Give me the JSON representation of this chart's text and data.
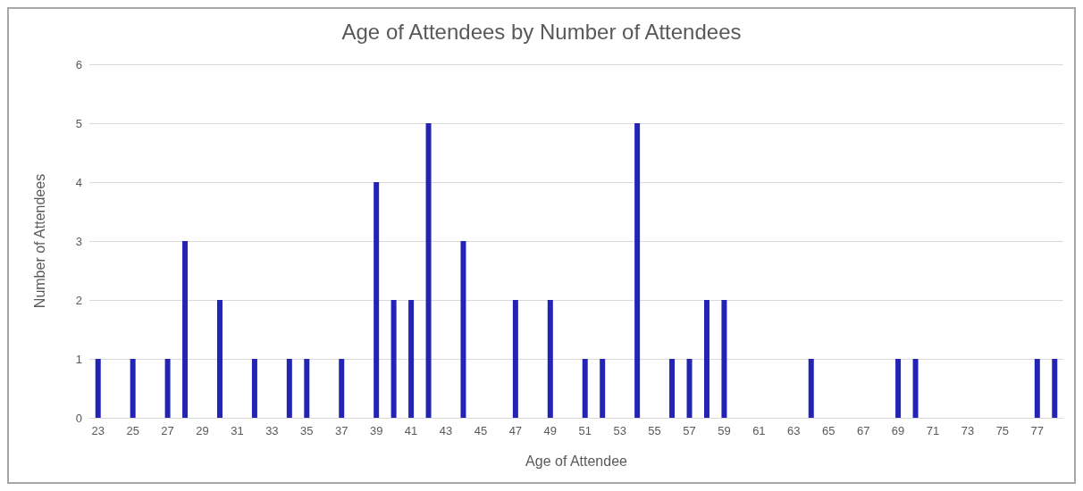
{
  "chart_data": {
    "type": "bar",
    "title": "Age of Attendees by Number of Attendees",
    "xlabel": "Age of Attendee",
    "ylabel": "Number of Attendees",
    "categories": [
      "23",
      null,
      "25",
      null,
      "27",
      null,
      "29",
      null,
      "31",
      null,
      "33",
      null,
      "35",
      null,
      "37",
      null,
      "39",
      null,
      "41",
      null,
      "43",
      null,
      "45",
      null,
      "47",
      null,
      "49",
      null,
      "51",
      null,
      "53",
      null,
      "55",
      null,
      "57",
      null,
      "59",
      null,
      "61",
      null,
      "63",
      null,
      "65",
      null,
      "67",
      null,
      "69",
      null,
      "71",
      null,
      "73",
      null,
      "75",
      null,
      "77",
      null
    ],
    "values": [
      1,
      0,
      1,
      0,
      1,
      3,
      0,
      2,
      0,
      1,
      0,
      1,
      1,
      0,
      1,
      0,
      4,
      2,
      2,
      5,
      0,
      3,
      0,
      0,
      2,
      0,
      2,
      0,
      1,
      1,
      0,
      5,
      0,
      1,
      1,
      2,
      2,
      0,
      0,
      0,
      0,
      1,
      0,
      0,
      0,
      0,
      1,
      1,
      0,
      0,
      0,
      0,
      0,
      0,
      1,
      1
    ],
    "color": "#2424b4",
    "ylim": [
      0,
      6
    ],
    "yticks": [
      0,
      1,
      2,
      3,
      4,
      5,
      6
    ],
    "grid": "y"
  }
}
